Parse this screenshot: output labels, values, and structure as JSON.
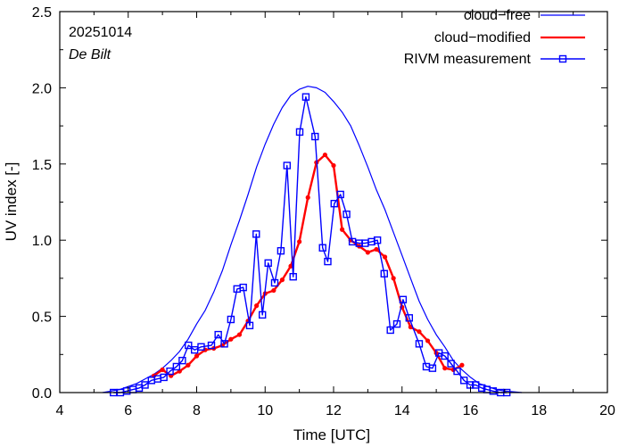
{
  "chart_data": {
    "type": "line",
    "title": "",
    "annotations": [
      "20251014",
      "De Bilt"
    ],
    "xlabel": "Time  [UTC]",
    "ylabel": "UV index  [-]",
    "xlim": [
      4,
      20
    ],
    "ylim": [
      0,
      2.5
    ],
    "xticks": [
      "4",
      "6",
      "8",
      "10",
      "12",
      "14",
      "16",
      "18",
      "20"
    ],
    "xtick_values": [
      4,
      6,
      8,
      10,
      12,
      14,
      16,
      18,
      20
    ],
    "yticks": [
      "0.0",
      "0.5",
      "1.0",
      "1.5",
      "2.0",
      "2.5"
    ],
    "ytick_values": [
      0,
      0.5,
      1.0,
      1.5,
      2.0,
      2.5
    ],
    "legend_position": "top-right",
    "grid": false,
    "series": [
      {
        "name": "cloud−free",
        "color": "#0000ff",
        "marker": "none",
        "x": [
          5.25,
          5.5,
          5.75,
          6.0,
          6.25,
          6.5,
          6.75,
          7.0,
          7.25,
          7.5,
          7.75,
          8.0,
          8.25,
          8.5,
          8.75,
          9.0,
          9.25,
          9.5,
          9.75,
          10.0,
          10.25,
          10.5,
          10.75,
          11.0,
          11.25,
          11.5,
          11.75,
          12.0,
          12.25,
          12.5,
          12.75,
          13.0,
          13.25,
          13.5,
          13.75,
          14.0,
          14.25,
          14.5,
          14.75,
          15.0,
          15.25,
          15.5,
          15.75,
          16.0,
          16.25,
          16.5,
          16.75,
          17.0,
          17.25,
          17.5
        ],
        "y": [
          0.0,
          0.01,
          0.02,
          0.04,
          0.06,
          0.09,
          0.12,
          0.16,
          0.21,
          0.27,
          0.35,
          0.45,
          0.54,
          0.66,
          0.8,
          0.97,
          1.13,
          1.3,
          1.48,
          1.63,
          1.76,
          1.87,
          1.95,
          1.99,
          2.01,
          2.0,
          1.97,
          1.91,
          1.84,
          1.75,
          1.62,
          1.48,
          1.33,
          1.2,
          1.05,
          0.9,
          0.75,
          0.6,
          0.48,
          0.38,
          0.3,
          0.21,
          0.15,
          0.1,
          0.06,
          0.04,
          0.02,
          0.01,
          0.005,
          0.0
        ]
      },
      {
        "name": "cloud−modified",
        "color": "#ff0000",
        "marker": "dot",
        "x": [
          6.75,
          7.0,
          7.25,
          7.5,
          7.75,
          8.0,
          8.25,
          8.5,
          8.75,
          9.0,
          9.25,
          9.5,
          9.75,
          10.0,
          10.25,
          10.5,
          10.75,
          11.0,
          11.25,
          11.5,
          11.75,
          12.0,
          12.25,
          12.5,
          12.75,
          13.0,
          13.25,
          13.5,
          13.75,
          14.0,
          14.25,
          14.5,
          14.75,
          15.0,
          15.25,
          15.5,
          15.75
        ],
        "y": [
          0.11,
          0.15,
          0.11,
          0.14,
          0.18,
          0.24,
          0.28,
          0.29,
          0.31,
          0.35,
          0.38,
          0.47,
          0.57,
          0.65,
          0.67,
          0.74,
          0.83,
          0.99,
          1.28,
          1.51,
          1.56,
          1.49,
          1.07,
          1.0,
          0.96,
          0.92,
          0.94,
          0.89,
          0.75,
          0.56,
          0.43,
          0.4,
          0.34,
          0.26,
          0.16,
          0.15,
          0.18
        ]
      },
      {
        "name": "RIVM measurement",
        "color": "#0000ff",
        "marker": "square",
        "x": [
          5.57,
          5.77,
          5.96,
          6.14,
          6.32,
          6.49,
          6.68,
          6.86,
          7.04,
          7.22,
          7.41,
          7.58,
          7.76,
          7.94,
          8.13,
          8.43,
          8.63,
          8.81,
          9.0,
          9.18,
          9.36,
          9.55,
          9.74,
          9.92,
          10.09,
          10.28,
          10.46,
          10.64,
          10.82,
          11.01,
          11.19,
          11.46,
          11.68,
          11.83,
          12.02,
          12.2,
          12.38,
          12.55,
          12.75,
          12.92,
          13.11,
          13.28,
          13.48,
          13.66,
          13.85,
          14.03,
          14.21,
          14.5,
          14.71,
          14.89,
          15.08,
          15.25,
          15.43,
          15.61,
          15.81,
          15.99,
          16.15,
          16.33,
          16.48,
          16.66,
          16.88,
          17.06
        ],
        "y": [
          0.0,
          0.0,
          0.01,
          0.02,
          0.03,
          0.05,
          0.08,
          0.09,
          0.1,
          0.14,
          0.17,
          0.21,
          0.31,
          0.28,
          0.3,
          0.31,
          0.38,
          0.32,
          0.48,
          0.68,
          0.69,
          0.44,
          1.04,
          0.51,
          0.85,
          0.72,
          0.93,
          1.49,
          0.76,
          1.71,
          1.94,
          1.68,
          0.95,
          0.86,
          1.24,
          1.3,
          1.17,
          0.99,
          0.98,
          0.98,
          0.99,
          1.0,
          0.78,
          0.41,
          0.45,
          0.61,
          0.49,
          0.32,
          0.17,
          0.16,
          0.26,
          0.24,
          0.19,
          0.14,
          0.08,
          0.05,
          0.05,
          0.03,
          0.02,
          0.01,
          0.0,
          0.0
        ]
      }
    ]
  }
}
